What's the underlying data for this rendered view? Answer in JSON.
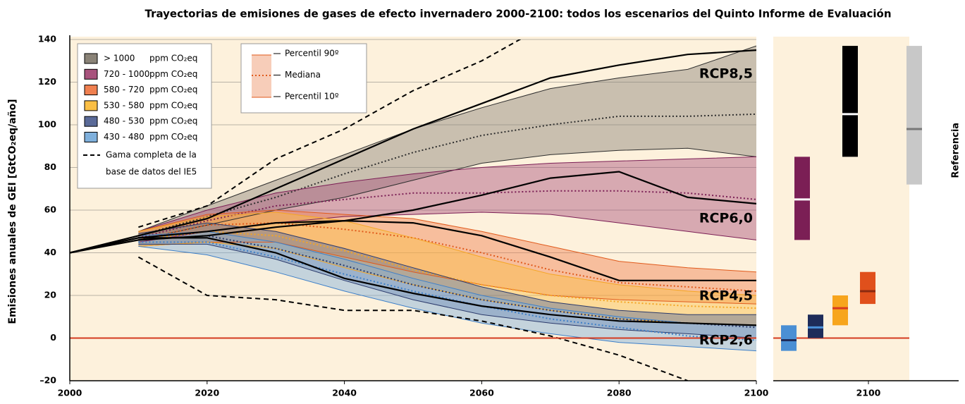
{
  "chart_data": {
    "type": "line",
    "title": "Trayectorias de emisiones de gases de efecto invernadero 2000-2100: todos los escenarios del Quinto Informe de Evaluación",
    "ylabel": "Emisiones anuales de GEI [GtCO₂eq/año]",
    "x": [
      2000,
      2010,
      2020,
      2030,
      2040,
      2050,
      2060,
      2070,
      2080,
      2090,
      2100
    ],
    "xlim": [
      2000,
      2100
    ],
    "xticks": [
      2000,
      2020,
      2040,
      2060,
      2080,
      2100
    ],
    "ylim": [
      -20,
      140
    ],
    "yticks": [
      {
        "value": -20,
        "label": "–20"
      },
      0,
      20,
      40,
      60,
      80,
      100,
      120,
      140
    ],
    "grid": true,
    "legend_unit": "ppm CO₂eq",
    "scenarios": [
      {
        "name": "> 1000",
        "color": "#8a8377",
        "line_color": "#2e2e2e",
        "bar_color": "#000000",
        "median_color": "#ffffff",
        "high": [
          null,
          50,
          62,
          74,
          86,
          98,
          108,
          117,
          122,
          126,
          137
        ],
        "median": [
          null,
          48,
          57,
          66,
          77,
          87,
          95,
          100,
          104,
          104,
          105
        ],
        "low": [
          null,
          46,
          53,
          60,
          66,
          74,
          82,
          86,
          88,
          89,
          85
        ]
      },
      {
        "name": "720 - 1000",
        "color": "#a8537d",
        "line_color": "#7b1f55",
        "bar_color": "#7b1f55",
        "median_color": "#ffffff",
        "high": [
          null,
          50,
          60,
          68,
          73,
          77,
          80,
          82,
          83,
          84,
          85
        ],
        "median": [
          null,
          47,
          55,
          62,
          65,
          68,
          68,
          69,
          69,
          68,
          65
        ],
        "low": [
          null,
          45,
          50,
          54,
          57,
          58,
          59,
          58,
          54,
          50,
          46
        ]
      },
      {
        "name": "580 - 720",
        "color": "#f08050",
        "line_color": "#e05a1c",
        "bar_color": "#e0501c",
        "median_color": "#8a2a10",
        "high": [
          null,
          50,
          58,
          60,
          58,
          56,
          50,
          43,
          36,
          33,
          31
        ],
        "median": [
          null,
          46,
          53,
          54,
          51,
          47,
          40,
          32,
          26,
          24,
          22
        ],
        "low": [
          null,
          43,
          45,
          45,
          38,
          31,
          25,
          20,
          18,
          17,
          16
        ]
      },
      {
        "name": "530 - 580",
        "color": "#fbbf45",
        "line_color": "#f5a623",
        "bar_color": "#f7a51d",
        "median_color": "#d83a20",
        "high": [
          null,
          50,
          57,
          59,
          55,
          47,
          38,
          30,
          25,
          22,
          20
        ],
        "median": [
          null,
          46,
          50,
          48,
          41,
          32,
          25,
          20,
          17,
          15,
          14
        ],
        "low": [
          null,
          43,
          45,
          42,
          33,
          25,
          18,
          13,
          9,
          7,
          6
        ]
      },
      {
        "name": "480 - 530",
        "color": "#5a6a98",
        "line_color": "#2b3a6b",
        "bar_color": "#1e2c5a",
        "median_color": "#4a90d9",
        "high": [
          null,
          49,
          54,
          50,
          42,
          33,
          24,
          17,
          13,
          11,
          11
        ],
        "median": [
          null,
          46,
          48,
          42,
          34,
          25,
          18,
          13,
          9,
          7,
          5
        ],
        "low": [
          null,
          44,
          44,
          37,
          27,
          18,
          11,
          7,
          4,
          2,
          0
        ]
      },
      {
        "name": "430 - 480",
        "color": "#7fb0dc",
        "line_color": "#3d7fc8",
        "bar_color": "#4a8fd4",
        "median_color": "#1e2c5a",
        "high": [
          null,
          48,
          50,
          45,
          37,
          28,
          20,
          14,
          10,
          7,
          6
        ],
        "median": [
          null,
          45,
          45,
          38,
          30,
          22,
          15,
          9,
          5,
          1,
          -1
        ],
        "low": [
          null,
          43,
          39,
          31,
          22,
          14,
          7,
          2,
          -2,
          -4,
          -6
        ]
      }
    ],
    "band_legend": [
      "Percentil 90º",
      "Mediana",
      "Percentil 10º"
    ],
    "full_range": {
      "name": [
        "Gama completa de la",
        "base de datos del IE5"
      ],
      "high": [
        null,
        52,
        62,
        84,
        98,
        116,
        130,
        148,
        null,
        null,
        null
      ],
      "low": [
        null,
        38,
        20,
        18,
        13,
        13,
        8,
        1,
        -8,
        -20,
        null
      ]
    },
    "rcp": [
      {
        "name": "RCP8,5",
        "values": [
          40,
          48,
          56,
          70,
          84,
          98,
          110,
          122,
          128,
          133,
          135
        ]
      },
      {
        "name": "RCP6,0",
        "values": [
          40,
          46,
          48,
          52,
          55,
          60,
          67,
          75,
          78,
          66,
          63
        ]
      },
      {
        "name": "RCP4,5",
        "values": [
          40,
          47,
          50,
          54,
          55,
          54,
          48,
          38,
          27,
          27,
          27
        ]
      },
      {
        "name": "RCP2,6",
        "values": [
          40,
          47,
          47,
          40,
          28,
          21,
          15,
          11,
          8,
          7,
          6
        ]
      }
    ],
    "reference": {
      "name": "Referencia",
      "low": 72,
      "median": 98,
      "high": 137
    }
  }
}
